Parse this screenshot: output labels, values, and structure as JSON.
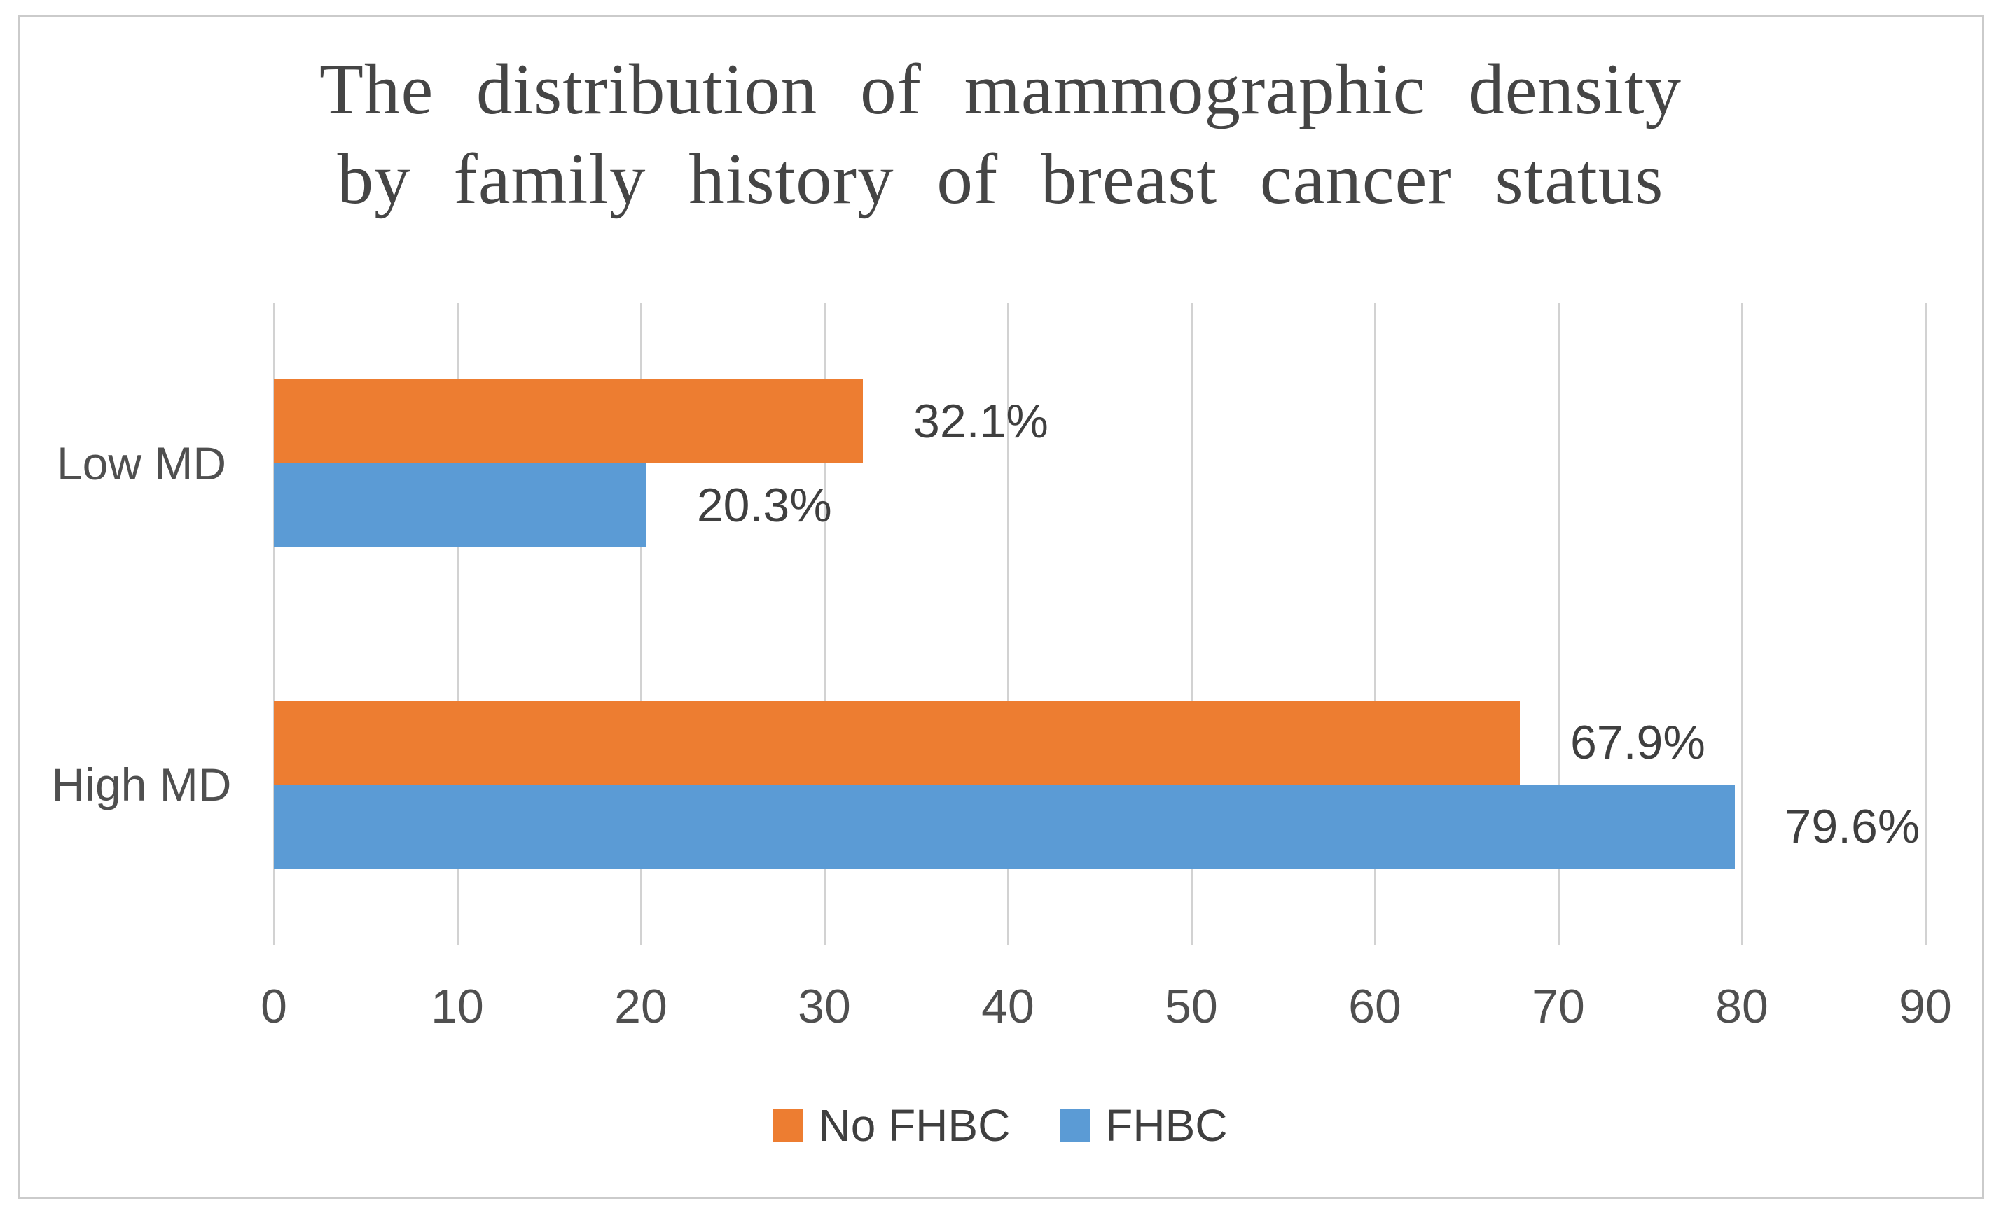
{
  "figure": {
    "title_line1": "The distribution of mammographic density",
    "title_line2": "by family history of breast cancer status"
  },
  "chart_data": {
    "type": "bar",
    "orientation": "horizontal",
    "title": "The distribution of mammographic density by family history of breast cancer status",
    "categories": [
      "Low MD",
      "High MD"
    ],
    "series": [
      {
        "name": "No FHBC",
        "color": "#ED7D31",
        "values": [
          32.1,
          67.9
        ],
        "data_labels": [
          "32.1%",
          "67.9%"
        ]
      },
      {
        "name": "FHBC",
        "color": "#5B9BD5",
        "values": [
          20.3,
          79.6
        ],
        "data_labels": [
          "20.3%",
          "79.6%"
        ]
      }
    ],
    "xlim": [
      0,
      90
    ],
    "x_ticks": [
      0,
      10,
      20,
      30,
      40,
      50,
      60,
      70,
      80,
      90
    ],
    "gridlines": true,
    "legend_position": "bottom",
    "value_suffix": "%"
  },
  "colors": {
    "no_fhbc": "#ED7D31",
    "fhbc": "#5B9BD5",
    "gridline": "#d2d2d2",
    "frame_border": "#cbcbcb",
    "title_text": "#454545",
    "label_text": "#4f4f4f"
  }
}
